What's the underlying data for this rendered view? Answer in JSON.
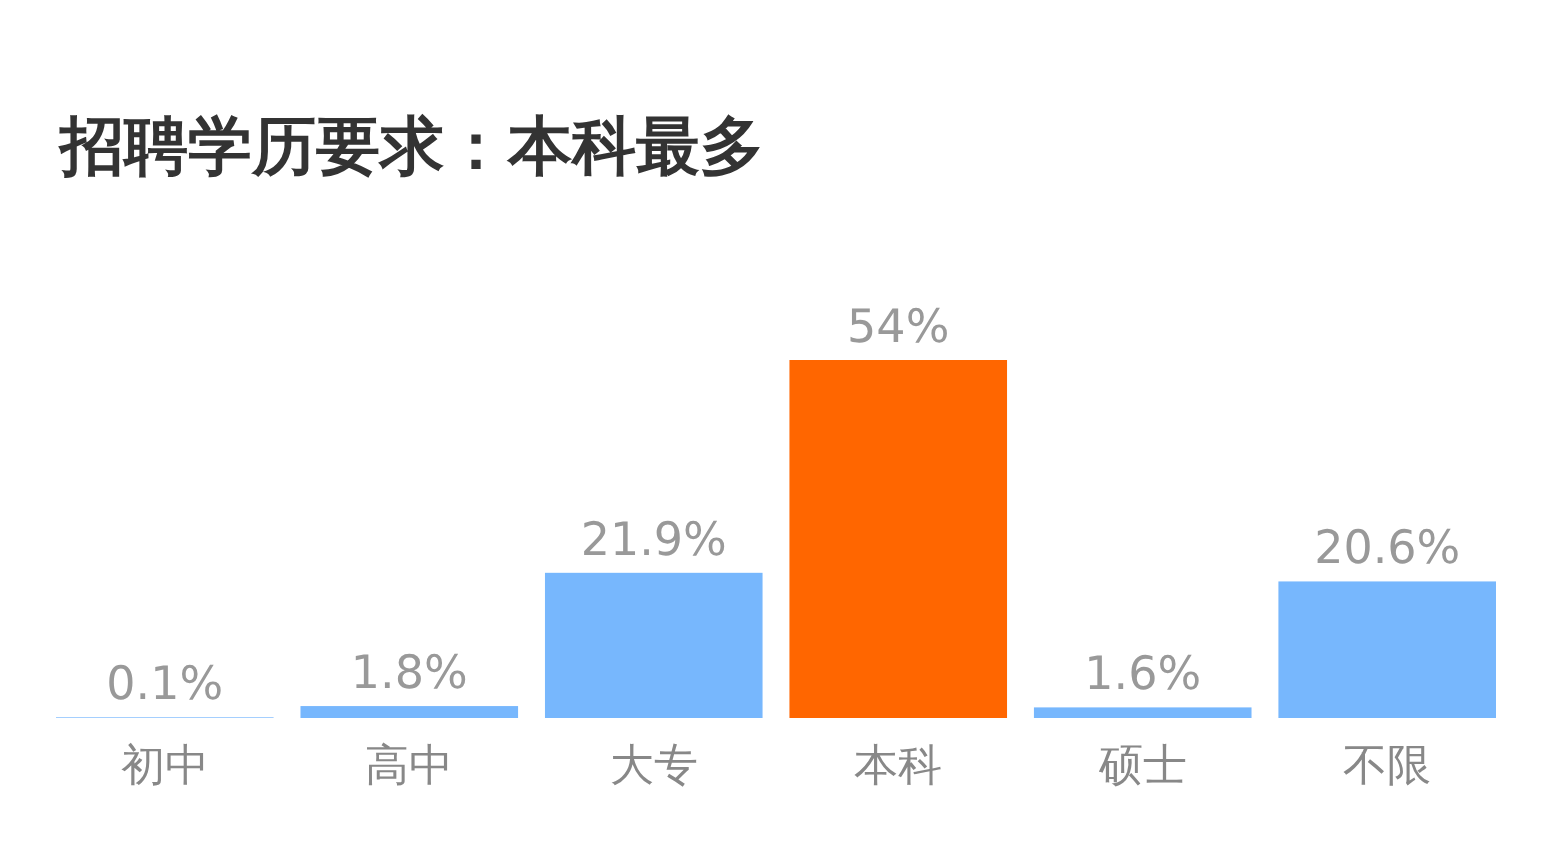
{
  "chart_data": {
    "type": "bar",
    "title": "招聘学历要求：本科最多",
    "categories": [
      "初中",
      "高中",
      "大专",
      "本科",
      "硕士",
      "不限"
    ],
    "values": [
      0.1,
      1.8,
      21.9,
      54,
      1.6,
      20.6
    ],
    "colors": [
      "#77b7fd",
      "#77b7fd",
      "#77b7fd",
      "#ff6600",
      "#77b7fd",
      "#77b7fd"
    ],
    "value_labels": [
      "0.1%",
      "1.8%",
      "21.9%",
      "54%",
      "1.6%",
      "20.6%"
    ]
  }
}
